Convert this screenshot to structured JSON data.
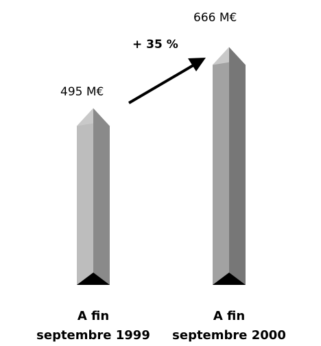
{
  "chart_data": {
    "type": "bar",
    "categories": [
      [
        "A fin",
        "septembre 1999"
      ],
      [
        "A fin",
        "septembre 2000"
      ]
    ],
    "values": [
      495,
      666
    ],
    "value_labels": [
      "495 M€",
      "666 M€"
    ],
    "annotation": "+ 35 %",
    "unit": "M€",
    "colors": {
      "bar_left_face": [
        "#bdbdbd",
        "#a2a2a2"
      ],
      "bar_right_face": [
        "#8a8a8a",
        "#777777"
      ],
      "bar_tip": "#c9c9c9",
      "base_triangle": "#000000",
      "arrow": "#000000"
    }
  }
}
